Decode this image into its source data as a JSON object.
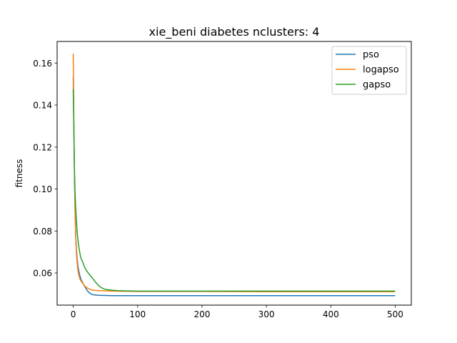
{
  "chart_data": {
    "type": "line",
    "title": "xie_beni diabetes nclusters: 4",
    "xlabel": "",
    "ylabel": "fitness",
    "xlim": [
      -25,
      525
    ],
    "ylim": [
      0.0447,
      0.1703
    ],
    "xticks": [
      0,
      100,
      200,
      300,
      400,
      500
    ],
    "xtick_labels": [
      "0",
      "100",
      "200",
      "300",
      "400",
      "500"
    ],
    "yticks": [
      0.06,
      0.08,
      0.1,
      0.12,
      0.14,
      0.16
    ],
    "ytick_labels": [
      "0.06",
      "0.08",
      "0.10",
      "0.12",
      "0.14",
      "0.16"
    ],
    "grid": false,
    "legend_position": "top-right",
    "series": [
      {
        "name": "pso",
        "color": "#1f77b4",
        "x": [
          0,
          1,
          2,
          3,
          4,
          5,
          6,
          7,
          8,
          10,
          12,
          15,
          18,
          22,
          26,
          30,
          35,
          40,
          50,
          60,
          80,
          100,
          150,
          200,
          300,
          400,
          500
        ],
        "y": [
          0.1535,
          0.128,
          0.104,
          0.088,
          0.077,
          0.071,
          0.067,
          0.064,
          0.062,
          0.059,
          0.057,
          0.0552,
          0.0535,
          0.0515,
          0.0503,
          0.0497,
          0.0495,
          0.0494,
          0.0493,
          0.0492,
          0.0492,
          0.0492,
          0.0492,
          0.0492,
          0.0492,
          0.0492,
          0.0492
        ]
      },
      {
        "name": "logapso",
        "color": "#ff7f0e",
        "x": [
          0,
          1,
          2,
          3,
          4,
          5,
          6,
          7,
          8,
          10,
          12,
          15,
          18,
          22,
          26,
          30,
          35,
          40,
          50,
          60,
          80,
          100,
          150,
          200,
          300,
          400,
          500
        ],
        "y": [
          0.1645,
          0.133,
          0.106,
          0.088,
          0.076,
          0.069,
          0.065,
          0.062,
          0.06,
          0.0575,
          0.0562,
          0.055,
          0.0538,
          0.0528,
          0.0522,
          0.0519,
          0.0517,
          0.0516,
          0.0515,
          0.0514,
          0.0513,
          0.0512,
          0.0512,
          0.0512,
          0.0511,
          0.0511,
          0.0511
        ]
      },
      {
        "name": "gapso",
        "color": "#2ca02c",
        "x": [
          0,
          1,
          2,
          3,
          4,
          5,
          6,
          7,
          8,
          10,
          12,
          15,
          18,
          22,
          26,
          30,
          35,
          40,
          45,
          50,
          60,
          70,
          80,
          100,
          150,
          200,
          300,
          400,
          500
        ],
        "y": [
          0.1475,
          0.128,
          0.108,
          0.097,
          0.09,
          0.085,
          0.08,
          0.077,
          0.074,
          0.07,
          0.067,
          0.065,
          0.0625,
          0.0605,
          0.059,
          0.0575,
          0.0555,
          0.0538,
          0.0528,
          0.0522,
          0.0518,
          0.0516,
          0.0515,
          0.0514,
          0.0514,
          0.0514,
          0.0514,
          0.0514,
          0.0514
        ]
      }
    ]
  }
}
